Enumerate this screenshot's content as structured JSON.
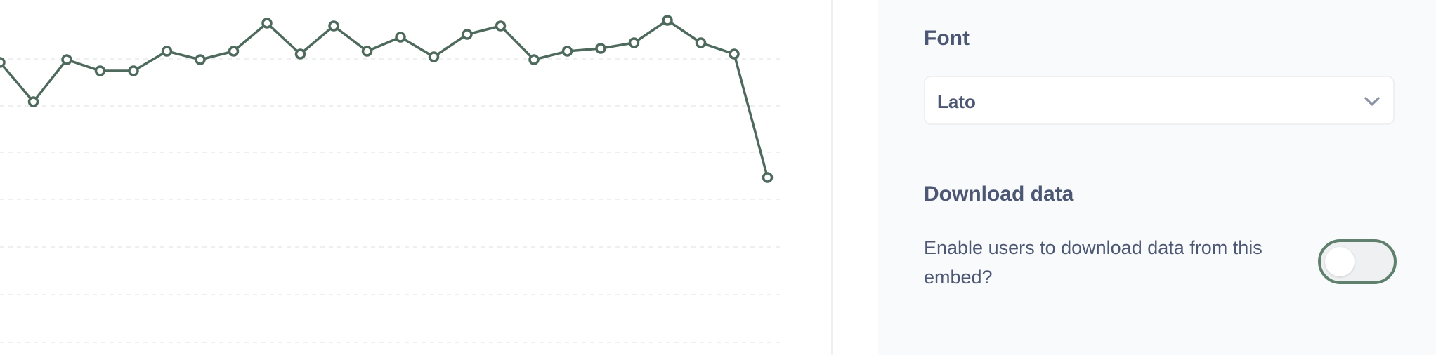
{
  "chart_data": {
    "type": "line",
    "y": [
      71,
      57,
      72,
      68,
      68,
      75,
      72,
      75,
      85,
      74,
      84,
      75,
      80,
      73,
      81,
      84,
      72,
      75,
      76,
      78,
      86,
      78,
      74,
      30
    ],
    "first_visible_y": 71,
    "series_color": "#4e6a5d",
    "gridlines": true
  },
  "sidebar": {
    "font_section": {
      "title": "Font",
      "selected_value": "Lato",
      "chevron_icon": "chevron-down-icon"
    },
    "download_section": {
      "title": "Download data",
      "description": "Enable users to download data from this embed?",
      "toggle_enabled": false,
      "accent_color": "#5f806d"
    }
  }
}
